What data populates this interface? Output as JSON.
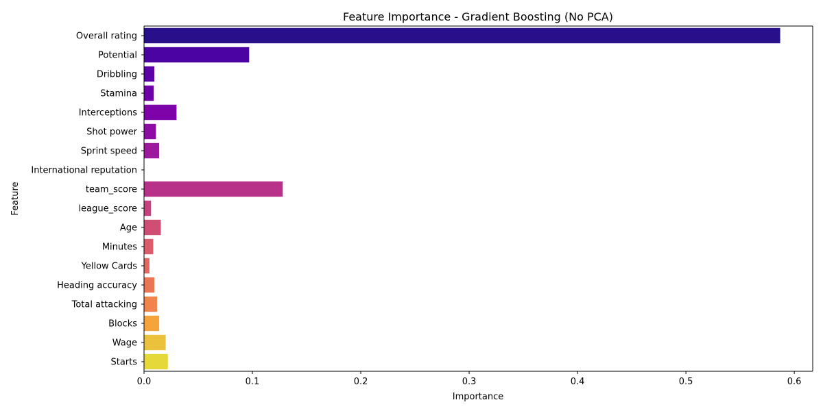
{
  "chart_data": {
    "type": "bar",
    "orientation": "horizontal",
    "title": "Feature Importance - Gradient Boosting (No PCA)",
    "xlabel": "Importance",
    "ylabel": "Feature",
    "xlim": [
      0,
      0.617
    ],
    "xticks": [
      0.0,
      0.1,
      0.2,
      0.3,
      0.4,
      0.5,
      0.6
    ],
    "xtick_labels": [
      "0.0",
      "0.1",
      "0.2",
      "0.3",
      "0.4",
      "0.5",
      "0.6"
    ],
    "grid": false,
    "categories": [
      "Overall rating",
      "Potential",
      "Dribbling",
      "Stamina",
      "Interceptions",
      "Shot power",
      "Sprint speed",
      "International reputation",
      "team_score",
      "league_score",
      "Age",
      "Minutes",
      "Yellow Cards",
      "Heading accuracy",
      "Total attacking",
      "Blocks",
      "Wage",
      "Starts"
    ],
    "values": [
      0.587,
      0.097,
      0.0095,
      0.009,
      0.03,
      0.011,
      0.014,
      0.0,
      0.128,
      0.0065,
      0.0155,
      0.0085,
      0.005,
      0.0095,
      0.012,
      0.014,
      0.02,
      0.022
    ],
    "colors": [
      "#2a0f8a",
      "#4b03a1",
      "#5c01a6",
      "#6e00a8",
      "#7e03a8",
      "#8e0ca4",
      "#9d189d",
      "#ac2694",
      "#b83289",
      "#c6417d",
      "#d04d73",
      "#da5b69",
      "#e3685f",
      "#eb7655",
      "#f1844b",
      "#f6a43a",
      "#ebc03b",
      "#e5d83a"
    ]
  }
}
